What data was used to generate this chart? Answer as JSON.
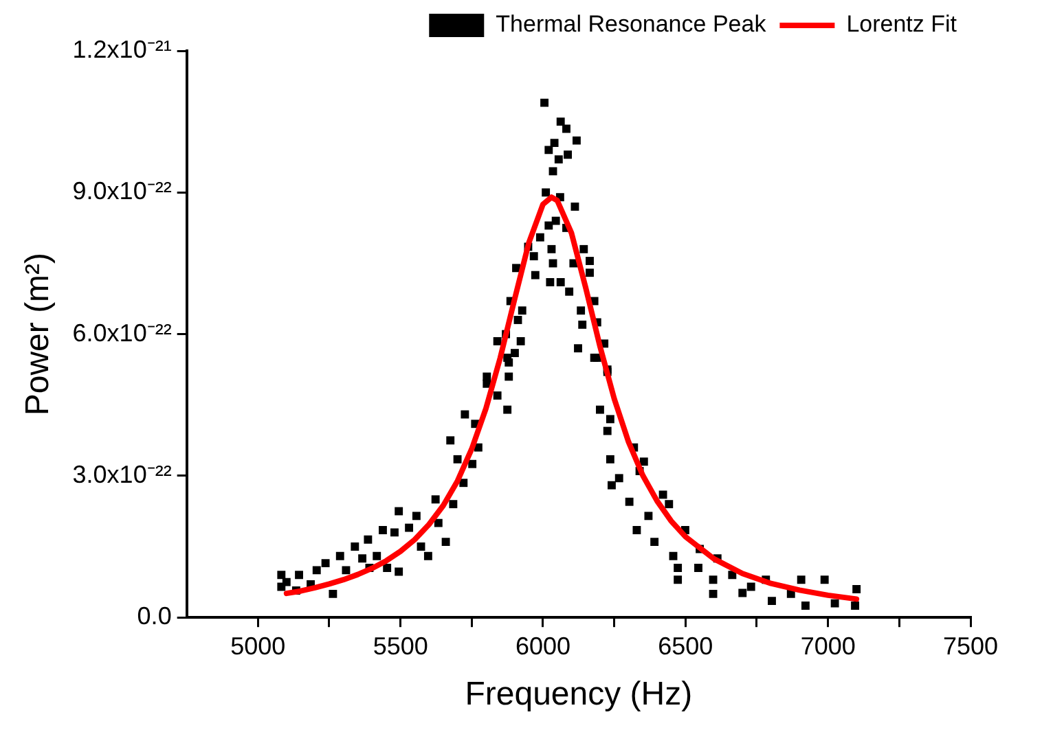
{
  "chart_data": {
    "type": "scatter",
    "xlabel": "Frequency (Hz)",
    "ylabel": "Power (m²)",
    "xlim": [
      4750,
      7500
    ],
    "xticks": [
      5000,
      {
        "value": 5250,
        "label": null
      },
      5500,
      {
        "value": 5750,
        "label": null
      },
      6000,
      {
        "value": 6250,
        "label": null
      },
      6500,
      {
        "value": 6750,
        "label": null
      },
      7000,
      {
        "value": 7250,
        "label": null
      },
      7500
    ],
    "ylim": [
      0,
      1.2e-21
    ],
    "yticks": [
      {
        "value": 0,
        "label": "0.0"
      },
      {
        "value": 3e-22,
        "label": "3.0x10⁻²²"
      },
      {
        "value": 6e-22,
        "label": "6.0x10⁻²²"
      },
      {
        "value": 9e-22,
        "label": "9.0x10⁻²²"
      },
      {
        "value": 1.2e-21,
        "label": "1.2x10⁻²¹"
      }
    ],
    "grid": false,
    "legend": "top right",
    "series": [
      {
        "name": "Thermal Resonance Peak",
        "type": "scatter",
        "color": "#000000",
        "marker": "square",
        "x": [
          5082,
          5082,
          5100,
          5134,
          5144,
          5185,
          5206,
          5237,
          5263,
          5288,
          5309,
          5340,
          5366,
          5386,
          5391,
          5417,
          5438,
          5453,
          5479,
          5494,
          5494,
          5530,
          5556,
          5572,
          5597,
          5623,
          5633,
          5659,
          5675,
          5685,
          5700,
          5721,
          5726,
          5752,
          5762,
          5773,
          5803,
          5803,
          5840,
          5840,
          5870,
          5875,
          5875,
          5880,
          5880,
          5886,
          5901,
          5906,
          5912,
          5922,
          5927,
          5948,
          5968,
          5973,
          5990,
          6005,
          6010,
          6020,
          6020,
          6025,
          6030,
          6035,
          6035,
          6040,
          6045,
          6055,
          6060,
          6062,
          6062,
          6082,
          6082,
          6087,
          6092,
          6107,
          6112,
          6118,
          6123,
          6133,
          6138,
          6143,
          6164,
          6164,
          6180,
          6180,
          6190,
          6190,
          6200,
          6215,
          6226,
          6226,
          6226,
          6236,
          6236,
          6241,
          6267,
          6303,
          6319,
          6329,
          6339,
          6354,
          6370,
          6391,
          6421,
          6442,
          6457,
          6473,
          6473,
          6499,
          6545,
          6550,
          6597,
          6597,
          6612,
          6664,
          6700,
          6730,
          6782,
          6803,
          6870,
          6906,
          6921,
          6988,
          7024,
          7095,
          7100
        ],
        "values": [
          9e-23,
          6.5e-23,
          7.5e-23,
          5.7e-23,
          9e-23,
          7e-23,
          1e-22,
          1.15e-22,
          5e-23,
          1.3e-22,
          1e-22,
          1.5e-22,
          1.25e-22,
          1.65e-22,
          1.05e-22,
          1.3e-22,
          1.85e-22,
          1.05e-22,
          1.8e-22,
          2.25e-22,
          9.7e-23,
          1.9e-22,
          2.15e-22,
          1.5e-22,
          1.3e-22,
          2.5e-22,
          2e-22,
          1.6e-22,
          3.75e-22,
          2.4e-22,
          3.35e-22,
          2.85e-22,
          4.3e-22,
          3.25e-22,
          4.1e-22,
          3.6e-22,
          4.95e-22,
          5.1e-22,
          4.7e-22,
          5.85e-22,
          6e-22,
          4.4e-22,
          5.5e-22,
          5.1e-22,
          5.4e-22,
          6.7e-22,
          5.6e-22,
          7.4e-22,
          6.3e-22,
          5.85e-22,
          6.5e-22,
          7.85e-22,
          7.65e-22,
          7.25e-22,
          8.05e-22,
          1.09e-21,
          9e-22,
          9.9e-22,
          8.3e-22,
          7.1e-22,
          7.8e-22,
          9.45e-22,
          7.5e-22,
          1.005e-21,
          8.4e-22,
          9.7e-22,
          8.9e-22,
          1.05e-21,
          7.1e-22,
          1.035e-21,
          8.25e-22,
          9.8e-22,
          6.9e-22,
          7.5e-22,
          8.7e-22,
          1.01e-21,
          5.7e-22,
          6.5e-22,
          6.2e-22,
          7.8e-22,
          7.55e-22,
          7.3e-22,
          6.7e-22,
          5.5e-22,
          6.25e-22,
          5.5e-22,
          4.4e-22,
          5.8e-22,
          5.25e-22,
          5.2e-22,
          3.95e-22,
          4.2e-22,
          3.35e-22,
          2.8e-22,
          2.95e-22,
          2.45e-22,
          3.6e-22,
          1.85e-22,
          3.1e-22,
          3.3e-22,
          2.15e-22,
          1.6e-22,
          2.6e-22,
          2.4e-22,
          1.3e-22,
          1.05e-22,
          8e-23,
          1.85e-22,
          1.05e-22,
          1.45e-22,
          8e-23,
          5e-23,
          1.25e-22,
          9e-23,
          5.2e-23,
          6.5e-23,
          8e-23,
          3.5e-23,
          5e-23,
          8e-23,
          2.5e-23,
          8e-23,
          3e-23,
          2.5e-23,
          6e-23
        ]
      },
      {
        "name": "Lorentz Fit",
        "type": "line",
        "color": "#ff0000",
        "x": [
          5100,
          5150,
          5200,
          5250,
          5300,
          5350,
          5400,
          5450,
          5500,
          5550,
          5600,
          5650,
          5700,
          5750,
          5800,
          5850,
          5900,
          5950,
          6000,
          6030,
          6050,
          6100,
          6150,
          6200,
          6250,
          6300,
          6350,
          6400,
          6450,
          6500,
          6600,
          6700,
          6800,
          6900,
          7000,
          7100
        ],
        "values": [
          5.1e-23,
          5.6e-23,
          6.3e-23,
          7.1e-23,
          8e-23,
          9.1e-23,
          1.04e-22,
          1.2e-22,
          1.4e-22,
          1.65e-22,
          1.97e-22,
          2.37e-22,
          2.89e-22,
          3.57e-22,
          4.43e-22,
          5.5e-22,
          6.73e-22,
          7.93e-22,
          8.75e-22,
          8.9e-22,
          8.83e-22,
          8.14e-22,
          6.98e-22,
          5.74e-22,
          4.63e-22,
          3.72e-22,
          3.01e-22,
          2.47e-22,
          2.04e-22,
          1.71e-22,
          1.24e-22,
          9.3e-23,
          7.2e-23,
          5.8e-23,
          4.7e-23,
          3.9e-23
        ]
      }
    ]
  }
}
